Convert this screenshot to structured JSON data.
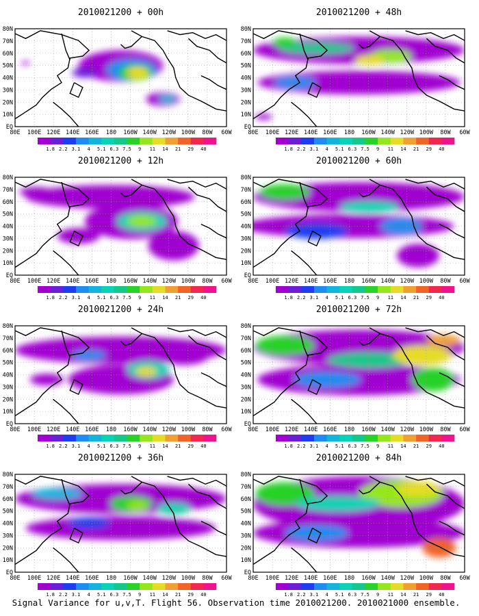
{
  "colorbar": {
    "labels": [
      "1.8",
      "2.2",
      "3.1",
      "4",
      "5.1",
      "6.3",
      "7.5",
      "9",
      "11",
      "14",
      "21",
      "29",
      "40"
    ],
    "colors": [
      "#a000d0",
      "#6a1ed8",
      "#1e3cf0",
      "#1e8cf0",
      "#12b4dc",
      "#0ad2b4",
      "#14c88c",
      "#28d228",
      "#96e61e",
      "#e6dc28",
      "#f0a032",
      "#f06428",
      "#f02850",
      "#f0148c"
    ]
  },
  "axes": {
    "x_ticks": [
      "80E",
      "100E",
      "120E",
      "140E",
      "160E",
      "180",
      "160W",
      "140W",
      "120W",
      "100W",
      "80W",
      "60W"
    ],
    "y_ticks": [
      "80N",
      "70N",
      "60N",
      "50N",
      "40N",
      "30N",
      "20N",
      "10N",
      "EQ"
    ]
  },
  "panels": [
    {
      "title": "2010021200 + 00h"
    },
    {
      "title": "2010021200 + 48h"
    },
    {
      "title": "2010021200 + 12h"
    },
    {
      "title": "2010021200 + 60h"
    },
    {
      "title": "2010021200 + 24h"
    },
    {
      "title": "2010021200 + 72h"
    },
    {
      "title": "2010021200 + 36h"
    },
    {
      "title": "2010021200 + 84h"
    }
  ],
  "caption": "Signal Variance for u,v,T. Flight 56. Observation time 2010021200. 2010021000 ensemble.",
  "chart_data": [
    {
      "type": "heatmap",
      "title": "2010021200 + 00h",
      "xlim": [
        "80E",
        "60W"
      ],
      "ylim": [
        "EQ",
        "80N"
      ]
    },
    {
      "type": "heatmap",
      "title": "2010021200 + 48h",
      "xlim": [
        "80E",
        "60W"
      ],
      "ylim": [
        "EQ",
        "80N"
      ]
    },
    {
      "type": "heatmap",
      "title": "2010021200 + 12h",
      "xlim": [
        "80E",
        "60W"
      ],
      "ylim": [
        "EQ",
        "80N"
      ]
    },
    {
      "type": "heatmap",
      "title": "2010021200 + 60h",
      "xlim": [
        "80E",
        "60W"
      ],
      "ylim": [
        "EQ",
        "80N"
      ]
    },
    {
      "type": "heatmap",
      "title": "2010021200 + 24h",
      "xlim": [
        "80E",
        "60W"
      ],
      "ylim": [
        "EQ",
        "80N"
      ]
    },
    {
      "type": "heatmap",
      "title": "2010021200 + 72h",
      "xlim": [
        "80E",
        "60W"
      ],
      "ylim": [
        "EQ",
        "80N"
      ]
    },
    {
      "type": "heatmap",
      "title": "2010021200 + 36h",
      "xlim": [
        "80E",
        "60W"
      ],
      "ylim": [
        "EQ",
        "80N"
      ]
    },
    {
      "type": "heatmap",
      "title": "2010021200 + 84h",
      "xlim": [
        "80E",
        "60W"
      ],
      "ylim": [
        "EQ",
        "80N"
      ]
    }
  ]
}
